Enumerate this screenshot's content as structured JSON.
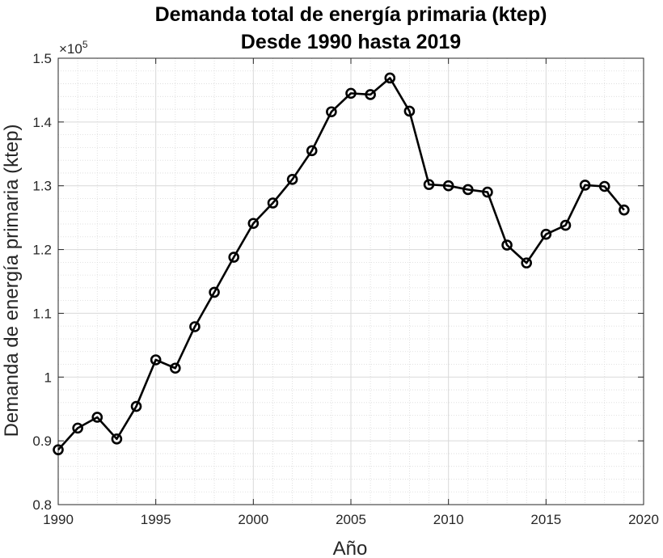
{
  "chart_data": {
    "type": "line",
    "title": "Demanda total de energía primaria (ktep)",
    "subtitle": "Desde 1990 hasta 2019",
    "xlabel": "Año",
    "ylabel": "Demanda de energía primaria (ktep)",
    "y_exponent_label": "×10",
    "y_exponent_power": "5",
    "xlim": [
      1990,
      2020
    ],
    "ylim": [
      0.8,
      1.5
    ],
    "x_ticks": [
      "1990",
      "1995",
      "2000",
      "2005",
      "2010",
      "2015",
      "2020"
    ],
    "y_ticks": [
      "0.8",
      "0.9",
      "1",
      "1.1",
      "1.2",
      "1.3",
      "1.4",
      "1.5"
    ],
    "grid": "major and minor, dotted",
    "colors": {
      "line": "#000000",
      "grid": "#d9d9d9",
      "axis": "#262626"
    },
    "series": [
      {
        "marker": "circle",
        "x": [
          1990,
          1991,
          1992,
          1993,
          1994,
          1995,
          1996,
          1997,
          1998,
          1999,
          2000,
          2001,
          2002,
          2003,
          2004,
          2005,
          2006,
          2007,
          2008,
          2009,
          2010,
          2011,
          2012,
          2013,
          2014,
          2015,
          2016,
          2017,
          2018,
          2019
        ],
        "y": [
          0.886,
          0.92,
          0.937,
          0.903,
          0.954,
          1.027,
          1.014,
          1.079,
          1.133,
          1.188,
          1.241,
          1.273,
          1.31,
          1.355,
          1.416,
          1.445,
          1.443,
          1.469,
          1.417,
          1.302,
          1.3,
          1.294,
          1.29,
          1.207,
          1.179,
          1.224,
          1.238,
          1.301,
          1.299,
          1.262
        ]
      }
    ]
  }
}
